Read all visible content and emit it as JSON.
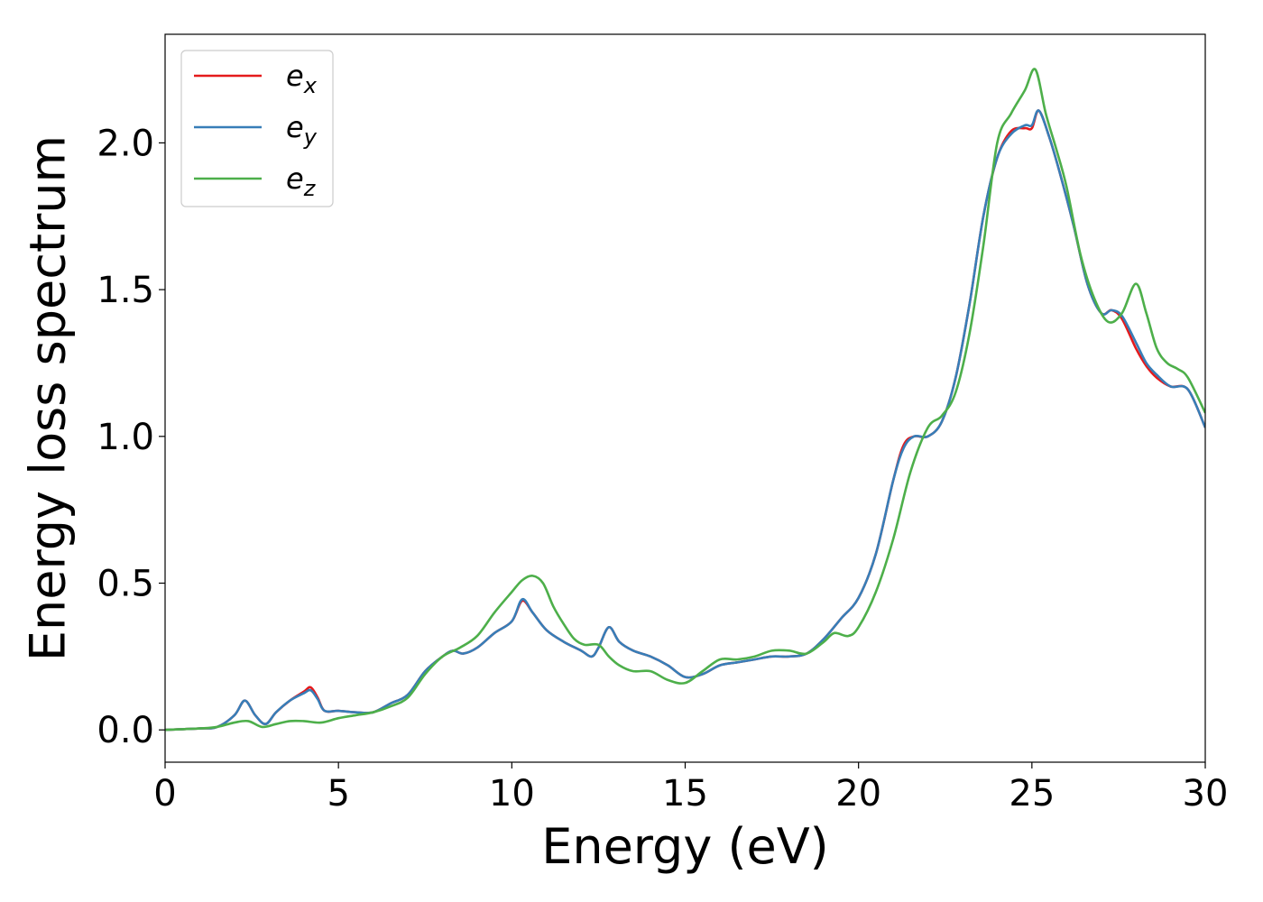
{
  "chart_data": {
    "type": "line",
    "xlabel": "Energy (eV)",
    "ylabel": "Energy loss spectrum",
    "xlim": [
      0,
      30
    ],
    "ylim": [
      -0.11,
      2.37
    ],
    "xticks": [
      "0",
      "5",
      "10",
      "15",
      "20",
      "25",
      "30"
    ],
    "yticks": [
      "0.0",
      "0.5",
      "1.0",
      "1.5",
      "2.0"
    ],
    "grid": false,
    "legend_position": "upper-left",
    "series": [
      {
        "name": "e_x",
        "legend_main": "e",
        "legend_sub": "x",
        "color": "#e41a1c",
        "x": [
          0,
          1.0,
          1.5,
          2.0,
          2.3,
          2.6,
          2.9,
          3.2,
          3.6,
          4.0,
          4.2,
          4.4,
          4.6,
          5.0,
          5.5,
          6.0,
          6.5,
          7.0,
          7.5,
          8.0,
          8.3,
          8.6,
          9.0,
          9.5,
          10.0,
          10.3,
          10.6,
          11.0,
          11.5,
          12.0,
          12.3,
          12.5,
          12.8,
          13.1,
          13.5,
          14.0,
          14.5,
          15.0,
          15.5,
          16.0,
          16.5,
          17.0,
          17.5,
          18.0,
          18.5,
          19.0,
          19.5,
          20.0,
          20.5,
          21.0,
          21.3,
          21.6,
          22.0,
          22.4,
          22.8,
          23.2,
          23.6,
          24.0,
          24.4,
          24.8,
          25.0,
          25.2,
          25.5,
          25.8,
          26.2,
          26.6,
          27.0,
          27.3,
          27.6,
          28.0,
          28.3,
          28.6,
          29.0,
          29.5,
          30.0
        ],
        "y": [
          0.0,
          0.005,
          0.01,
          0.05,
          0.1,
          0.05,
          0.02,
          0.06,
          0.1,
          0.13,
          0.145,
          0.11,
          0.065,
          0.065,
          0.06,
          0.06,
          0.09,
          0.12,
          0.2,
          0.25,
          0.27,
          0.26,
          0.28,
          0.33,
          0.37,
          0.44,
          0.4,
          0.34,
          0.3,
          0.27,
          0.25,
          0.28,
          0.35,
          0.3,
          0.27,
          0.25,
          0.22,
          0.18,
          0.19,
          0.22,
          0.23,
          0.24,
          0.25,
          0.25,
          0.26,
          0.31,
          0.38,
          0.45,
          0.6,
          0.85,
          0.97,
          1.0,
          1.0,
          1.05,
          1.2,
          1.45,
          1.75,
          1.95,
          2.04,
          2.05,
          2.05,
          2.11,
          2.02,
          1.9,
          1.72,
          1.52,
          1.42,
          1.43,
          1.4,
          1.3,
          1.24,
          1.2,
          1.17,
          1.16,
          1.03
        ]
      },
      {
        "name": "e_y",
        "legend_main": "e",
        "legend_sub": "y",
        "color": "#377eb8",
        "x": [
          0,
          1.0,
          1.5,
          2.0,
          2.3,
          2.6,
          2.9,
          3.2,
          3.6,
          4.0,
          4.2,
          4.4,
          4.6,
          5.0,
          5.5,
          6.0,
          6.5,
          7.0,
          7.5,
          8.0,
          8.3,
          8.6,
          9.0,
          9.5,
          10.0,
          10.3,
          10.6,
          11.0,
          11.5,
          12.0,
          12.3,
          12.5,
          12.8,
          13.1,
          13.5,
          14.0,
          14.5,
          15.0,
          15.5,
          16.0,
          16.5,
          17.0,
          17.5,
          18.0,
          18.5,
          19.0,
          19.5,
          20.0,
          20.5,
          21.0,
          21.3,
          21.6,
          22.0,
          22.4,
          22.8,
          23.2,
          23.6,
          24.0,
          24.4,
          24.8,
          25.0,
          25.2,
          25.5,
          25.8,
          26.2,
          26.6,
          27.0,
          27.3,
          27.6,
          28.0,
          28.3,
          28.6,
          29.0,
          29.5,
          30.0
        ],
        "y": [
          0.0,
          0.005,
          0.01,
          0.05,
          0.1,
          0.05,
          0.02,
          0.06,
          0.1,
          0.125,
          0.135,
          0.105,
          0.065,
          0.065,
          0.06,
          0.06,
          0.09,
          0.12,
          0.2,
          0.25,
          0.27,
          0.26,
          0.28,
          0.33,
          0.37,
          0.445,
          0.4,
          0.34,
          0.3,
          0.27,
          0.25,
          0.28,
          0.35,
          0.3,
          0.27,
          0.25,
          0.22,
          0.18,
          0.19,
          0.22,
          0.23,
          0.24,
          0.25,
          0.25,
          0.26,
          0.31,
          0.38,
          0.45,
          0.6,
          0.85,
          0.96,
          1.0,
          1.0,
          1.05,
          1.2,
          1.45,
          1.75,
          1.95,
          2.03,
          2.06,
          2.06,
          2.11,
          2.02,
          1.9,
          1.72,
          1.52,
          1.42,
          1.43,
          1.41,
          1.32,
          1.25,
          1.21,
          1.17,
          1.16,
          1.03
        ]
      },
      {
        "name": "e_z",
        "legend_main": "e",
        "legend_sub": "z",
        "color": "#4daf4a",
        "x": [
          0,
          1.0,
          1.5,
          2.0,
          2.4,
          2.8,
          3.2,
          3.6,
          4.0,
          4.5,
          5.0,
          5.5,
          6.0,
          6.5,
          7.0,
          7.5,
          8.0,
          8.5,
          9.0,
          9.5,
          10.0,
          10.3,
          10.6,
          10.9,
          11.2,
          11.5,
          11.8,
          12.1,
          12.5,
          12.8,
          13.1,
          13.5,
          14.0,
          14.5,
          15.0,
          15.5,
          16.0,
          16.5,
          17.0,
          17.5,
          18.0,
          18.5,
          19.0,
          19.3,
          19.7,
          20.0,
          20.5,
          21.0,
          21.5,
          22.0,
          22.4,
          22.8,
          23.2,
          23.6,
          24.0,
          24.4,
          24.8,
          25.1,
          25.4,
          25.7,
          26.0,
          26.4,
          26.8,
          27.2,
          27.6,
          28.0,
          28.3,
          28.6,
          28.9,
          29.2,
          29.5,
          30.0
        ],
        "y": [
          0.0,
          0.005,
          0.01,
          0.025,
          0.03,
          0.01,
          0.02,
          0.03,
          0.03,
          0.025,
          0.04,
          0.05,
          0.06,
          0.08,
          0.11,
          0.19,
          0.25,
          0.28,
          0.32,
          0.4,
          0.47,
          0.51,
          0.525,
          0.5,
          0.42,
          0.36,
          0.31,
          0.29,
          0.29,
          0.25,
          0.22,
          0.2,
          0.2,
          0.17,
          0.16,
          0.2,
          0.24,
          0.24,
          0.25,
          0.27,
          0.27,
          0.26,
          0.3,
          0.33,
          0.32,
          0.35,
          0.47,
          0.65,
          0.88,
          1.03,
          1.07,
          1.15,
          1.35,
          1.65,
          2.0,
          2.1,
          2.18,
          2.25,
          2.1,
          1.98,
          1.85,
          1.62,
          1.47,
          1.39,
          1.42,
          1.52,
          1.42,
          1.3,
          1.25,
          1.23,
          1.2,
          1.08
        ]
      }
    ]
  }
}
